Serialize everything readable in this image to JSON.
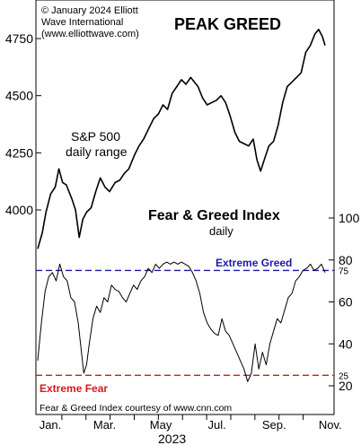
{
  "colors": {
    "background": "#ffffff",
    "line": "#000000",
    "extreme_greed": "#1a1aa8",
    "extreme_fear": "#d61a1a"
  },
  "texts": {
    "copyright_1": "© January 2024 Elliott",
    "copyright_2": "Wave International",
    "copyright_3": "(www.elliottwave.com)",
    "title": "PEAK GREED",
    "sp_label_1": "S&P 500",
    "sp_label_2": "daily range",
    "fg_label_1": "Fear & Greed Index",
    "fg_label_2": "daily",
    "extreme_greed_label": "Extreme Greed",
    "extreme_fear_label": "Extreme Fear",
    "credit": "Fear & Greed Index courtesy of www.cnn.com",
    "year": "2023"
  },
  "chart_data": [
    {
      "type": "line",
      "name": "S&P 500",
      "y_axis": "left",
      "ylim": [
        3740,
        4820
      ],
      "ticks": [
        4000,
        4250,
        4500,
        4750
      ],
      "series": [
        {
          "values": [
            [
              0,
              3830
            ],
            [
              5,
              3900
            ],
            [
              9,
              3990
            ],
            [
              14,
              4070
            ],
            [
              19,
              4100
            ],
            [
              23,
              4180
            ],
            [
              27,
              4120
            ],
            [
              31,
              4110
            ],
            [
              37,
              4050
            ],
            [
              41,
              4000
            ],
            [
              45,
              3880
            ],
            [
              49,
              3960
            ],
            [
              53,
              3990
            ],
            [
              58,
              4010
            ],
            [
              63,
              4080
            ],
            [
              68,
              4140
            ],
            [
              73,
              4100
            ],
            [
              78,
              4080
            ],
            [
              84,
              4120
            ],
            [
              89,
              4130
            ],
            [
              94,
              4160
            ],
            [
              99,
              4180
            ],
            [
              105,
              4240
            ],
            [
              110,
              4280
            ],
            [
              115,
              4310
            ],
            [
              121,
              4360
            ],
            [
              126,
              4400
            ],
            [
              131,
              4420
            ],
            [
              136,
              4460
            ],
            [
              141,
              4440
            ],
            [
              146,
              4510
            ],
            [
              151,
              4540
            ],
            [
              156,
              4570
            ],
            [
              161,
              4550
            ],
            [
              166,
              4580
            ],
            [
              170,
              4560
            ],
            [
              174,
              4540
            ],
            [
              179,
              4490
            ],
            [
              184,
              4460
            ],
            [
              189,
              4470
            ],
            [
              194,
              4480
            ],
            [
              199,
              4500
            ],
            [
              204,
              4470
            ],
            [
              209,
              4410
            ],
            [
              214,
              4340
            ],
            [
              219,
              4300
            ],
            [
              224,
              4290
            ],
            [
              229,
              4280
            ],
            [
              234,
              4310
            ],
            [
              238,
              4220
            ],
            [
              242,
              4170
            ],
            [
              246,
              4220
            ],
            [
              251,
              4280
            ],
            [
              256,
              4300
            ],
            [
              261,
              4370
            ],
            [
              266,
              4470
            ],
            [
              271,
              4540
            ],
            [
              276,
              4560
            ],
            [
              281,
              4580
            ],
            [
              286,
              4600
            ],
            [
              291,
              4690
            ],
            [
              296,
              4720
            ],
            [
              301,
              4770
            ],
            [
              305,
              4790
            ],
            [
              309,
              4760
            ],
            [
              312,
              4720
            ]
          ]
        }
      ]
    },
    {
      "type": "line",
      "name": "Fear & Greed Index",
      "y_axis": "right",
      "ylim": [
        14,
        106
      ],
      "ticks": [
        20,
        40,
        60,
        80,
        100
      ],
      "reference_lines": [
        {
          "value": 75,
          "label": "Extreme Greed",
          "tick": "75"
        },
        {
          "value": 25,
          "label": "Extreme Fear",
          "tick": "25"
        }
      ],
      "series": [
        {
          "values": [
            [
              0,
              32
            ],
            [
              4,
              50
            ],
            [
              8,
              65
            ],
            [
              12,
              72
            ],
            [
              16,
              74
            ],
            [
              20,
              70
            ],
            [
              24,
              78
            ],
            [
              28,
              72
            ],
            [
              32,
              70
            ],
            [
              36,
              62
            ],
            [
              40,
              60
            ],
            [
              44,
              50
            ],
            [
              47,
              38
            ],
            [
              50,
              26
            ],
            [
              53,
              30
            ],
            [
              56,
              40
            ],
            [
              60,
              52
            ],
            [
              64,
              58
            ],
            [
              68,
              55
            ],
            [
              72,
              62
            ],
            [
              76,
              60
            ],
            [
              80,
              68
            ],
            [
              84,
              66
            ],
            [
              88,
              65
            ],
            [
              92,
              62
            ],
            [
              96,
              60
            ],
            [
              100,
              64
            ],
            [
              104,
              68
            ],
            [
              108,
              66
            ],
            [
              112,
              70
            ],
            [
              116,
              72
            ],
            [
              120,
              76
            ],
            [
              124,
              74
            ],
            [
              128,
              78
            ],
            [
              132,
              76
            ],
            [
              136,
              78
            ],
            [
              140,
              79
            ],
            [
              144,
              78
            ],
            [
              148,
              79
            ],
            [
              152,
              78
            ],
            [
              156,
              79
            ],
            [
              160,
              78
            ],
            [
              164,
              77
            ],
            [
              168,
              74
            ],
            [
              172,
              70
            ],
            [
              176,
              64
            ],
            [
              180,
              55
            ],
            [
              184,
              50
            ],
            [
              188,
              47
            ],
            [
              192,
              45
            ],
            [
              196,
              44
            ],
            [
              200,
              52
            ],
            [
              204,
              46
            ],
            [
              208,
              44
            ],
            [
              212,
              40
            ],
            [
              216,
              36
            ],
            [
              220,
              32
            ],
            [
              224,
              28
            ],
            [
              228,
              22
            ],
            [
              232,
              26
            ],
            [
              236,
              40
            ],
            [
              240,
              28
            ],
            [
              244,
              36
            ],
            [
              248,
              30
            ],
            [
              252,
              40
            ],
            [
              256,
              46
            ],
            [
              260,
              52
            ],
            [
              264,
              50
            ],
            [
              268,
              56
            ],
            [
              272,
              62
            ],
            [
              276,
              64
            ],
            [
              280,
              70
            ],
            [
              284,
              72
            ],
            [
              288,
              75
            ],
            [
              292,
              76
            ],
            [
              296,
              78
            ],
            [
              300,
              75
            ],
            [
              304,
              76
            ],
            [
              308,
              78
            ],
            [
              312,
              74
            ]
          ]
        }
      ]
    }
  ],
  "x_axis": {
    "labels": [
      "Jan.",
      "Mar.",
      "May",
      "Jul.",
      "Sep.",
      "Nov."
    ]
  }
}
